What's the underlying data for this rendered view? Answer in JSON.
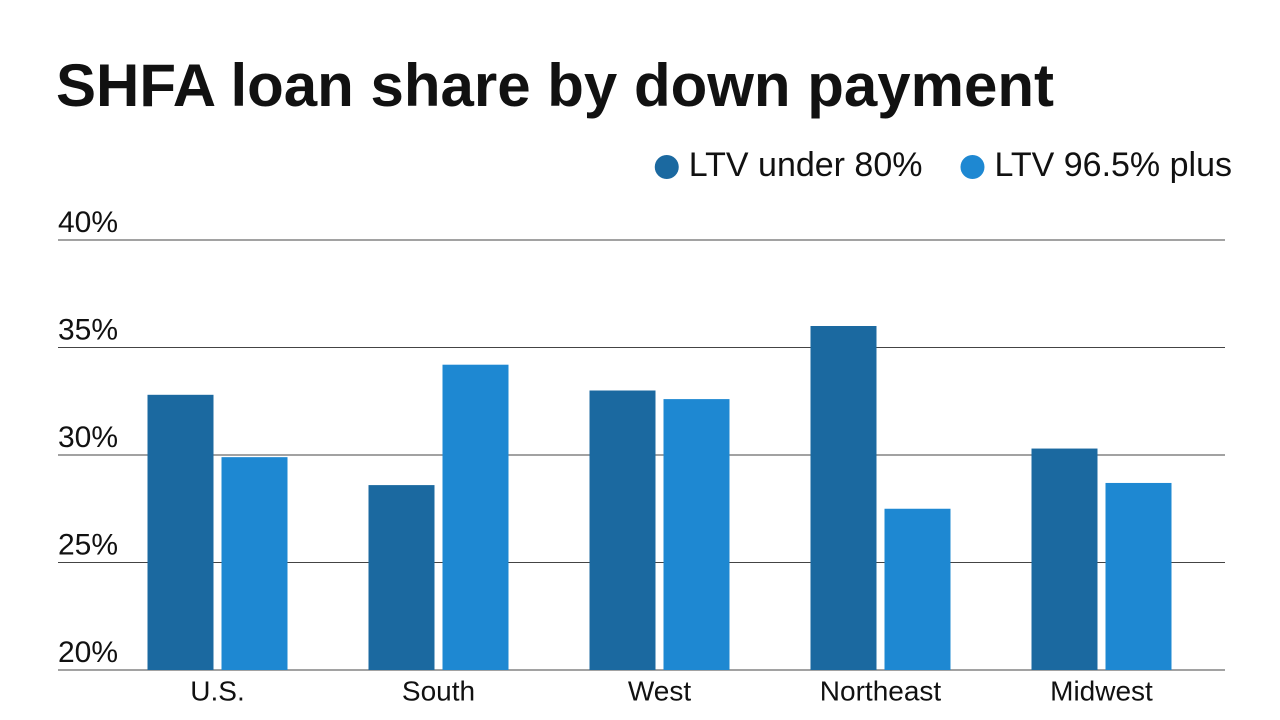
{
  "chart_data": {
    "type": "bar",
    "title": "SHFA loan share by down payment",
    "categories": [
      "U.S.",
      "South",
      "West",
      "Northeast",
      "Midwest"
    ],
    "series": [
      {
        "name": "LTV under 80%",
        "color": "#1b69a0",
        "values": [
          32.8,
          28.6,
          33.0,
          36.0,
          30.3
        ]
      },
      {
        "name": "LTV 96.5% plus",
        "color": "#1e88d2",
        "values": [
          29.9,
          34.2,
          32.6,
          27.5,
          28.7
        ]
      }
    ],
    "ylim": [
      20,
      40
    ],
    "yticks": [
      {
        "value": 20,
        "label": "20%"
      },
      {
        "value": 25,
        "label": "25%"
      },
      {
        "value": 30,
        "label": "30%"
      },
      {
        "value": 35,
        "label": "35%"
      },
      {
        "value": 40,
        "label": "40%"
      }
    ],
    "grid": true,
    "legend": "top-right"
  }
}
